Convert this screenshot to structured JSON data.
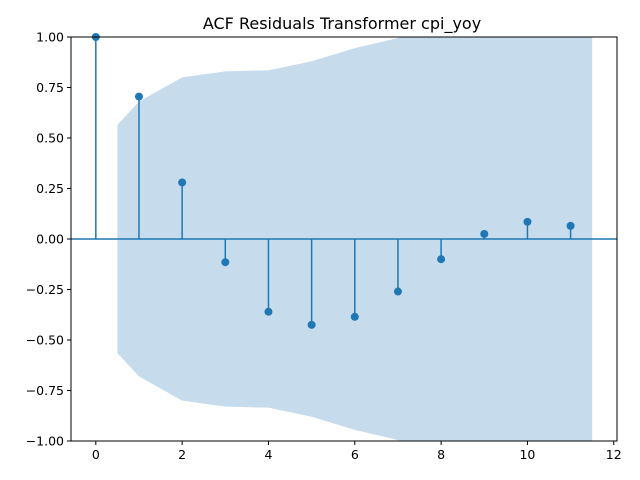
{
  "chart_data": {
    "type": "stem",
    "title": "ACF Residuals Transformer cpi_yoy",
    "xlabel": "",
    "ylabel": "",
    "xlim": [
      -0.575,
      12.075
    ],
    "ylim": [
      -1.0,
      1.0
    ],
    "x_ticks": [
      0,
      2,
      4,
      6,
      8,
      10,
      12
    ],
    "y_ticks": [
      -1.0,
      -0.75,
      -0.5,
      -0.25,
      0.0,
      0.25,
      0.5,
      0.75,
      1.0
    ],
    "x_tick_labels": [
      "0",
      "2",
      "4",
      "6",
      "8",
      "10",
      "12"
    ],
    "y_tick_labels": [
      "−1.00",
      "−0.75",
      "−0.50",
      "−0.25",
      "0.00",
      "0.25",
      "0.50",
      "0.75",
      "1.00"
    ],
    "lags": [
      0,
      1,
      2,
      3,
      4,
      5,
      6,
      7,
      8,
      9,
      10,
      11
    ],
    "values": [
      1.0,
      0.705,
      0.28,
      -0.115,
      -0.36,
      -0.425,
      -0.385,
      -0.26,
      -0.1,
      0.025,
      0.085,
      0.065
    ],
    "confidence_band": {
      "x": [
        0.5,
        1,
        2,
        3,
        4,
        5,
        6,
        7,
        8,
        9,
        10,
        11,
        11.5
      ],
      "upper": [
        0.565,
        0.68,
        0.8,
        0.83,
        0.835,
        0.88,
        0.945,
        0.995,
        1.05,
        1.06,
        1.065,
        1.065,
        1.065
      ]
    },
    "colors": {
      "stem": "#1f77b4",
      "marker": "#1f77b4",
      "band": "#c6dbec",
      "zero_line": "#1f77b4"
    },
    "grid": false,
    "legend": "none"
  }
}
